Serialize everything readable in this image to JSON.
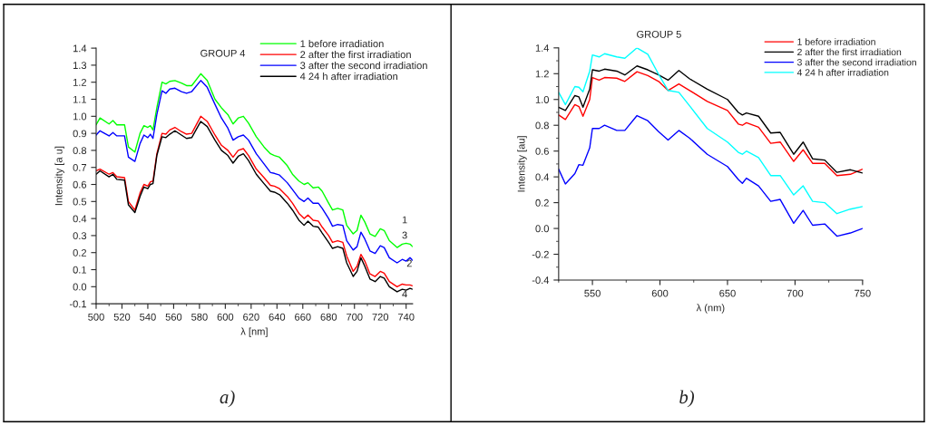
{
  "chart_data": [
    {
      "type": "line",
      "title": "GROUP 4",
      "xlabel": "λ [nm]",
      "ylabel": "Intensity [a u]",
      "x": [
        500,
        503,
        510,
        513,
        516,
        522,
        525,
        530,
        534,
        537,
        540,
        542,
        544,
        547,
        551,
        554,
        557,
        561,
        566,
        570,
        574,
        581,
        586,
        592,
        597,
        602,
        606,
        610,
        614,
        618,
        624,
        630,
        635,
        638,
        642,
        648,
        652,
        657,
        661,
        664,
        668,
        672,
        675,
        680,
        683,
        687,
        691,
        694,
        699,
        702,
        705,
        708,
        712,
        716,
        720,
        723,
        727,
        733,
        737,
        740,
        743,
        745
      ],
      "series": [
        {
          "name": "1 before irradiation",
          "color": "#00ff00",
          "values": [
            0.95,
            0.99,
            0.955,
            0.975,
            0.95,
            0.95,
            0.82,
            0.79,
            0.9,
            0.945,
            0.935,
            0.945,
            0.92,
            1.05,
            1.2,
            1.19,
            1.205,
            1.21,
            1.195,
            1.18,
            1.18,
            1.25,
            1.21,
            1.1,
            1.05,
            1.01,
            0.955,
            0.99,
            1.0,
            0.96,
            0.88,
            0.82,
            0.78,
            0.77,
            0.76,
            0.71,
            0.66,
            0.62,
            0.6,
            0.61,
            0.58,
            0.585,
            0.56,
            0.49,
            0.45,
            0.46,
            0.45,
            0.36,
            0.31,
            0.33,
            0.42,
            0.38,
            0.31,
            0.295,
            0.34,
            0.33,
            0.27,
            0.23,
            0.25,
            0.255,
            0.25,
            0.235
          ]
        },
        {
          "name": "2 after the first irradiation",
          "color": "#ff0000",
          "values": [
            0.68,
            0.69,
            0.66,
            0.67,
            0.645,
            0.64,
            0.5,
            0.45,
            0.55,
            0.6,
            0.59,
            0.615,
            0.62,
            0.78,
            0.9,
            0.895,
            0.92,
            0.935,
            0.91,
            0.895,
            0.9,
            1.0,
            0.97,
            0.89,
            0.83,
            0.8,
            0.76,
            0.8,
            0.81,
            0.77,
            0.69,
            0.64,
            0.595,
            0.59,
            0.575,
            0.53,
            0.49,
            0.43,
            0.4,
            0.42,
            0.39,
            0.385,
            0.35,
            0.3,
            0.26,
            0.27,
            0.26,
            0.18,
            0.09,
            0.12,
            0.19,
            0.15,
            0.075,
            0.06,
            0.09,
            0.08,
            0.03,
            0.0,
            0.015,
            0.01,
            0.01,
            0.005
          ]
        },
        {
          "name": "3 after the second irradiation",
          "color": "#0000ff",
          "values": [
            0.89,
            0.915,
            0.885,
            0.905,
            0.885,
            0.885,
            0.76,
            0.735,
            0.84,
            0.89,
            0.875,
            0.895,
            0.87,
            1.01,
            1.15,
            1.135,
            1.16,
            1.165,
            1.145,
            1.135,
            1.145,
            1.21,
            1.17,
            1.07,
            0.99,
            0.93,
            0.86,
            0.88,
            0.89,
            0.86,
            0.78,
            0.72,
            0.67,
            0.665,
            0.655,
            0.61,
            0.57,
            0.52,
            0.5,
            0.52,
            0.49,
            0.49,
            0.46,
            0.4,
            0.355,
            0.365,
            0.36,
            0.27,
            0.215,
            0.235,
            0.32,
            0.28,
            0.21,
            0.195,
            0.24,
            0.23,
            0.17,
            0.14,
            0.16,
            0.15,
            0.17,
            0.155
          ]
        },
        {
          "name": "4 24 h after irradiation",
          "color": "#000000",
          "values": [
            0.66,
            0.68,
            0.645,
            0.66,
            0.63,
            0.625,
            0.48,
            0.435,
            0.53,
            0.585,
            0.575,
            0.6,
            0.605,
            0.77,
            0.88,
            0.875,
            0.895,
            0.915,
            0.89,
            0.87,
            0.875,
            0.97,
            0.94,
            0.86,
            0.8,
            0.77,
            0.725,
            0.765,
            0.78,
            0.74,
            0.66,
            0.605,
            0.56,
            0.555,
            0.54,
            0.49,
            0.45,
            0.39,
            0.36,
            0.385,
            0.355,
            0.35,
            0.315,
            0.26,
            0.225,
            0.235,
            0.225,
            0.14,
            0.06,
            0.09,
            0.17,
            0.12,
            0.045,
            0.03,
            0.06,
            0.05,
            0.0,
            -0.03,
            -0.015,
            -0.02,
            -0.01,
            -0.015
          ]
        }
      ],
      "xlim": [
        500,
        745
      ],
      "xticks": [
        500,
        520,
        540,
        560,
        580,
        600,
        620,
        640,
        660,
        680,
        700,
        720,
        740
      ],
      "ylim": [
        -0.1,
        1.4
      ],
      "yticks": [
        {
          "value": -0.1,
          "label": "-0.1"
        },
        {
          "value": 0,
          "label": "0.0"
        },
        0.1,
        0.2,
        0.3,
        0.4,
        0.5,
        0.6,
        0.7,
        0.8,
        0.9,
        {
          "value": 1,
          "label": "1.0"
        },
        1.1,
        1.2,
        1.3,
        1.4
      ],
      "legend": "top right",
      "grid": false,
      "annotations": [
        "1",
        "3",
        "2",
        "4",
        "a)"
      ]
    },
    {
      "type": "line",
      "title": "GROUP 5",
      "xlabel": "λ (nm)",
      "ylabel": "Intensity [au]",
      "x": [
        525,
        530,
        537,
        540,
        543,
        548,
        550,
        555,
        559,
        568,
        574,
        583,
        591,
        599,
        606,
        614,
        622,
        635,
        650,
        658,
        661,
        664,
        673,
        682,
        689,
        699,
        706,
        713,
        722,
        731,
        741,
        750
      ],
      "series": [
        {
          "name": "1 before irradiation",
          "color": "#ff0000",
          "values": [
            0.88,
            0.845,
            0.96,
            0.945,
            0.87,
            1.0,
            1.17,
            1.15,
            1.17,
            1.165,
            1.14,
            1.215,
            1.185,
            1.14,
            1.07,
            1.12,
            1.07,
            0.985,
            0.915,
            0.81,
            0.8,
            0.82,
            0.785,
            0.66,
            0.67,
            0.52,
            0.61,
            0.505,
            0.505,
            0.41,
            0.42,
            0.46
          ]
        },
        {
          "name": "2 after the first irradiation",
          "color": "#000000",
          "values": [
            0.94,
            0.915,
            1.03,
            1.02,
            0.94,
            1.08,
            1.23,
            1.22,
            1.235,
            1.22,
            1.19,
            1.26,
            1.23,
            1.19,
            1.15,
            1.225,
            1.16,
            1.08,
            1.0,
            0.9,
            0.88,
            0.895,
            0.87,
            0.74,
            0.745,
            0.575,
            0.67,
            0.54,
            0.53,
            0.435,
            0.455,
            0.43
          ]
        },
        {
          "name": "3 after the second irradiation",
          "color": "#0000ff",
          "values": [
            0.46,
            0.345,
            0.425,
            0.495,
            0.49,
            0.625,
            0.775,
            0.775,
            0.8,
            0.76,
            0.76,
            0.875,
            0.835,
            0.75,
            0.685,
            0.76,
            0.7,
            0.575,
            0.48,
            0.38,
            0.35,
            0.39,
            0.33,
            0.21,
            0.225,
            0.04,
            0.14,
            0.025,
            0.035,
            -0.06,
            -0.035,
            0.0
          ]
        },
        {
          "name": "4 24 h after irradiation",
          "color": "#00ffff",
          "values": [
            1.055,
            0.96,
            1.1,
            1.095,
            1.06,
            1.22,
            1.345,
            1.33,
            1.355,
            1.33,
            1.32,
            1.4,
            1.35,
            1.195,
            1.07,
            1.055,
            0.95,
            0.775,
            0.67,
            0.59,
            0.575,
            0.6,
            0.55,
            0.41,
            0.41,
            0.26,
            0.33,
            0.21,
            0.2,
            0.115,
            0.15,
            0.17
          ]
        }
      ],
      "xlim": [
        525,
        750
      ],
      "xticks": [
        550,
        600,
        650,
        700,
        750
      ],
      "ylim": [
        -0.4,
        1.4
      ],
      "yticks": [
        {
          "value": -0.4,
          "label": "-0.4"
        },
        {
          "value": -0.2,
          "label": "-0.2"
        },
        {
          "value": 0,
          "label": "0.0"
        },
        0.2,
        0.4,
        0.6,
        0.8,
        {
          "value": 1,
          "label": "1.0"
        },
        1.2,
        1.4
      ],
      "legend": "top right",
      "grid": false,
      "annotations": [
        "b)"
      ]
    }
  ]
}
